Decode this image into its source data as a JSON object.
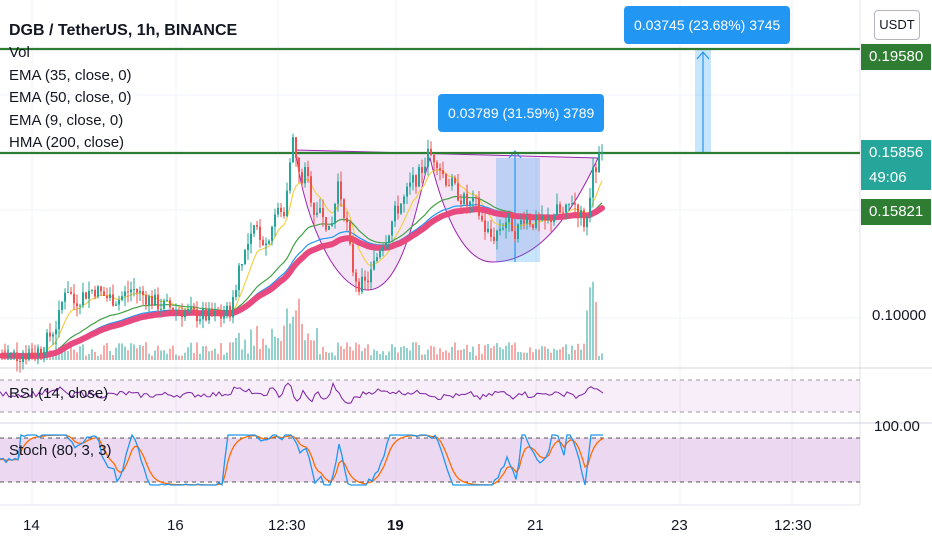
{
  "header": {
    "title": "DGB / TetherUS, 1h, BINANCE",
    "currency_button": "USDT"
  },
  "legend": {
    "vol": "Vol",
    "ema35": "EMA (35, close, 0)",
    "ema50": "EMA (50, close, 0)",
    "ema9": "EMA (9, close, 0)",
    "hma200": "HMA (200, close)"
  },
  "panes": {
    "rsi_label": "RSI (14, close)",
    "stoch_label": "Stoch (80, 3, 3)",
    "stoch_axis_value": "100.00"
  },
  "price_axis": {
    "level_upper": "0.19580",
    "level_current": "0.15856",
    "countdown": "49:06",
    "level_hma": "0.15821",
    "level_low": "0.10000"
  },
  "callouts": {
    "left": "0.03789 (31.59%) 3789",
    "right": "0.03745 (23.68%) 3745"
  },
  "colors": {
    "green_line": "#2e7d32",
    "hma": "#e84a7f",
    "ema_yellow": "#f2d04a",
    "ema_green": "#43a047",
    "ema_blue": "#2196f3",
    "candle_up": "#26a69a",
    "candle_down": "#ef5350",
    "rsi": "#7b1fa2",
    "callout": "#2196f3"
  },
  "chart_data": {
    "type": "candlestick",
    "symbol": "DGB / TetherUS",
    "interval": "1h",
    "exchange": "BINANCE",
    "x_ticks": [
      "14",
      "16",
      "12:30",
      "19",
      "21",
      "23",
      "12:30"
    ],
    "y_ticks": [
      0.1,
      0.15821,
      0.15856,
      0.1958
    ],
    "horizontal_levels": [
      0.1958,
      0.15856
    ],
    "last_price": 0.15856,
    "hma_value": 0.15821,
    "measurements": [
      {
        "label": "0.03789 (31.59%) 3789",
        "delta": 0.03789,
        "percent": 31.59,
        "ticks": 3789
      },
      {
        "label": "0.03745 (23.68%) 3745",
        "delta": 0.03745,
        "percent": 23.68,
        "ticks": 3745
      }
    ],
    "price_path": [
      [
        0,
        0.086
      ],
      [
        20,
        0.086
      ],
      [
        40,
        0.088
      ],
      [
        48,
        0.092
      ],
      [
        58,
        0.098
      ],
      [
        66,
        0.112
      ],
      [
        74,
        0.105
      ],
      [
        84,
        0.108
      ],
      [
        94,
        0.11
      ],
      [
        106,
        0.107
      ],
      [
        118,
        0.106
      ],
      [
        132,
        0.11
      ],
      [
        146,
        0.107
      ],
      [
        160,
        0.104
      ],
      [
        174,
        0.103
      ],
      [
        190,
        0.101
      ],
      [
        206,
        0.1
      ],
      [
        222,
        0.1
      ],
      [
        232,
        0.103
      ],
      [
        240,
        0.12
      ],
      [
        248,
        0.125
      ],
      [
        256,
        0.132
      ],
      [
        266,
        0.126
      ],
      [
        276,
        0.138
      ],
      [
        284,
        0.136
      ],
      [
        292,
        0.165
      ],
      [
        300,
        0.148
      ],
      [
        306,
        0.152
      ],
      [
        314,
        0.138
      ],
      [
        322,
        0.14
      ],
      [
        330,
        0.128
      ],
      [
        338,
        0.148
      ],
      [
        346,
        0.135
      ],
      [
        352,
        0.118
      ],
      [
        358,
        0.112
      ],
      [
        364,
        0.111
      ],
      [
        372,
        0.116
      ],
      [
        380,
        0.125
      ],
      [
        388,
        0.13
      ],
      [
        396,
        0.138
      ],
      [
        404,
        0.142
      ],
      [
        412,
        0.148
      ],
      [
        420,
        0.151
      ],
      [
        428,
        0.158
      ],
      [
        436,
        0.157
      ],
      [
        444,
        0.15
      ],
      [
        452,
        0.147
      ],
      [
        460,
        0.143
      ],
      [
        468,
        0.14
      ],
      [
        476,
        0.14
      ],
      [
        484,
        0.132
      ],
      [
        492,
        0.128
      ],
      [
        500,
        0.132
      ],
      [
        508,
        0.135
      ],
      [
        516,
        0.13
      ],
      [
        524,
        0.136
      ],
      [
        532,
        0.134
      ],
      [
        540,
        0.133
      ],
      [
        548,
        0.134
      ],
      [
        556,
        0.138
      ],
      [
        564,
        0.136
      ],
      [
        572,
        0.142
      ],
      [
        580,
        0.137
      ],
      [
        586,
        0.132
      ],
      [
        592,
        0.15
      ],
      [
        598,
        0.155
      ],
      [
        603,
        0.159
      ]
    ],
    "rsi_range": [
      0,
      100
    ],
    "stoch_range": [
      0,
      100
    ]
  }
}
